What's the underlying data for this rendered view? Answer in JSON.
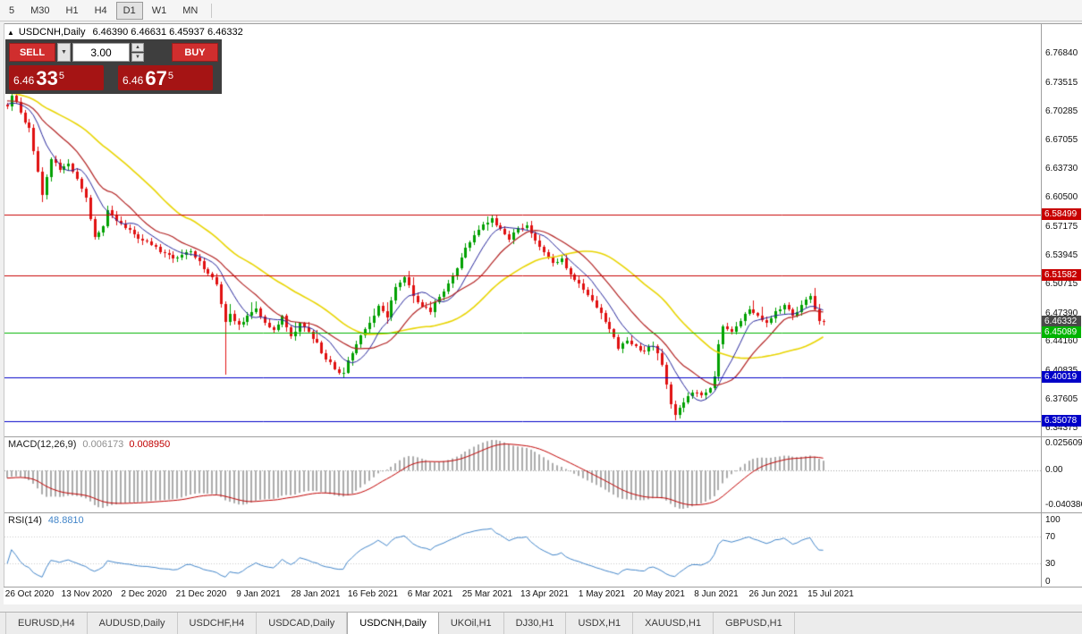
{
  "toolbar": {
    "timeframes": [
      {
        "label": "5",
        "active": false
      },
      {
        "label": "M30",
        "active": false
      },
      {
        "label": "H1",
        "active": false
      },
      {
        "label": "H4",
        "active": false
      },
      {
        "label": "D1",
        "active": true
      },
      {
        "label": "W1",
        "active": false
      },
      {
        "label": "MN",
        "active": false
      }
    ]
  },
  "chart": {
    "collapse_icon": "▲",
    "title_symbol": "USDCNH,Daily",
    "title_ohlc": "6.46390 6.46631 6.45937 6.46332"
  },
  "trade_panel": {
    "sell_label": "SELL",
    "buy_label": "BUY",
    "volume": "3.00",
    "bid": {
      "small": "6.46",
      "big": "33",
      "sup": "5"
    },
    "ask": {
      "small": "6.46",
      "big": "67",
      "sup": "5"
    }
  },
  "price_axis": {
    "ticks": [
      "6.76840",
      "6.73515",
      "6.70285",
      "6.67055",
      "6.63730",
      "6.60500",
      "6.57175",
      "6.53945",
      "6.50715",
      "6.47390",
      "6.44160",
      "6.40835",
      "6.37605",
      "6.34375"
    ]
  },
  "levels": [
    {
      "value": "6.58499",
      "color": "#C80000",
      "line": true
    },
    {
      "value": "6.51582",
      "color": "#C80000",
      "line": true
    },
    {
      "value": "6.46332",
      "color": "#4A4A4A",
      "line": false
    },
    {
      "value": "6.45089",
      "color": "#00B400",
      "line": true
    },
    {
      "value": "6.40019",
      "color": "#0000C8",
      "line": true
    },
    {
      "value": "6.35078",
      "color": "#0000C8",
      "line": true
    }
  ],
  "macd": {
    "label": "MACD(12,26,9)",
    "value_main": "0.006173",
    "value_signal": "0.008950",
    "axis": {
      "top": "0.025609",
      "zero": "0.00",
      "bottom": "-0.040386"
    }
  },
  "rsi": {
    "label": "RSI(14)",
    "value": "48.8810",
    "axis": [
      {
        "v": 100,
        "label": "100"
      },
      {
        "v": 70,
        "label": "70"
      },
      {
        "v": 30,
        "label": "30"
      },
      {
        "v": 0,
        "label": "0"
      }
    ],
    "levels": [
      70,
      30
    ]
  },
  "time_axis": {
    "labels": [
      "26 Oct 2020",
      "13 Nov 2020",
      "2 Dec 2020",
      "21 Dec 2020",
      "9 Jan 2021",
      "28 Jan 2021",
      "16 Feb 2021",
      "6 Mar 2021",
      "25 Mar 2021",
      "13 Apr 2021",
      "1 May 2021",
      "20 May 2021",
      "8 Jun 2021",
      "26 Jun 2021",
      "15 Jul 2021"
    ]
  },
  "tabs": [
    {
      "label": "EURUSD,H4",
      "active": false
    },
    {
      "label": "AUDUSD,Daily",
      "active": false
    },
    {
      "label": "USDCHF,H4",
      "active": false
    },
    {
      "label": "USDCAD,Daily",
      "active": false
    },
    {
      "label": "USDCNH,Daily",
      "active": true
    },
    {
      "label": "UKOil,H1",
      "active": false
    },
    {
      "label": "DJ30,H1",
      "active": false
    },
    {
      "label": "USDX,H1",
      "active": false
    },
    {
      "label": "XAUUSD,H1",
      "active": false
    },
    {
      "label": "GBPUSD,H1",
      "active": false
    }
  ],
  "chart_data": {
    "type": "candlestick",
    "symbol": "USDCNH",
    "timeframe": "Daily",
    "title": "USDCNH,Daily",
    "ohlc_display": {
      "open": "6.46390",
      "high": "6.46631",
      "low": "6.45937",
      "close": "6.46332"
    },
    "current_price": 6.46332,
    "ylim": [
      6.334,
      6.772
    ],
    "num_candles": 188,
    "pre_history_bars": 50,
    "horizontal_levels": [
      6.58499,
      6.51582,
      6.45089,
      6.40019,
      6.35078
    ],
    "anchors": [
      [
        -50,
        6.758
      ],
      [
        -35,
        6.742
      ],
      [
        -20,
        6.727
      ],
      [
        -8,
        6.714
      ],
      [
        0,
        6.708
      ],
      [
        1,
        6.72
      ],
      [
        3,
        6.701
      ],
      [
        5,
        6.683
      ],
      [
        7,
        6.634
      ],
      [
        8,
        6.607
      ],
      [
        9,
        6.628
      ],
      [
        10,
        6.648
      ],
      [
        12,
        6.636
      ],
      [
        14,
        6.643
      ],
      [
        16,
        6.625
      ],
      [
        18,
        6.604
      ],
      [
        20,
        6.56
      ],
      [
        22,
        6.572
      ],
      [
        23,
        6.59
      ],
      [
        25,
        6.578
      ],
      [
        27,
        6.57
      ],
      [
        30,
        6.558
      ],
      [
        33,
        6.551
      ],
      [
        36,
        6.541
      ],
      [
        39,
        6.536
      ],
      [
        42,
        6.543
      ],
      [
        44,
        6.532
      ],
      [
        46,
        6.518
      ],
      [
        48,
        6.506
      ],
      [
        50,
        6.463
      ],
      [
        51,
        6.472
      ],
      [
        53,
        6.46
      ],
      [
        55,
        6.47
      ],
      [
        57,
        6.479
      ],
      [
        59,
        6.462
      ],
      [
        61,
        6.454
      ],
      [
        63,
        6.47
      ],
      [
        65,
        6.447
      ],
      [
        67,
        6.462
      ],
      [
        69,
        6.452
      ],
      [
        71,
        6.44
      ],
      [
        73,
        6.421
      ],
      [
        75,
        6.41
      ],
      [
        77,
        6.406
      ],
      [
        79,
        6.428
      ],
      [
        81,
        6.448
      ],
      [
        83,
        6.462
      ],
      [
        85,
        6.482
      ],
      [
        87,
        6.468
      ],
      [
        89,
        6.503
      ],
      [
        91,
        6.514
      ],
      [
        93,
        6.493
      ],
      [
        95,
        6.481
      ],
      [
        97,
        6.474
      ],
      [
        99,
        6.492
      ],
      [
        101,
        6.507
      ],
      [
        103,
        6.524
      ],
      [
        105,
        6.547
      ],
      [
        107,
        6.562
      ],
      [
        109,
        6.574
      ],
      [
        111,
        6.581
      ],
      [
        113,
        6.569
      ],
      [
        115,
        6.557
      ],
      [
        117,
        6.57
      ],
      [
        119,
        6.573
      ],
      [
        121,
        6.556
      ],
      [
        123,
        6.542
      ],
      [
        125,
        6.53
      ],
      [
        127,
        6.535
      ],
      [
        129,
        6.517
      ],
      [
        131,
        6.507
      ],
      [
        133,
        6.494
      ],
      [
        135,
        6.48
      ],
      [
        136,
        6.473
      ],
      [
        138,
        6.455
      ],
      [
        140,
        6.433
      ],
      [
        142,
        6.442
      ],
      [
        144,
        6.436
      ],
      [
        146,
        6.43
      ],
      [
        148,
        6.436
      ],
      [
        150,
        6.415
      ],
      [
        151,
        6.392
      ],
      [
        152,
        6.37
      ],
      [
        153,
        6.358
      ],
      [
        155,
        6.372
      ],
      [
        157,
        6.383
      ],
      [
        159,
        6.38
      ],
      [
        161,
        6.388
      ],
      [
        162,
        6.402
      ],
      [
        163,
        6.438
      ],
      [
        164,
        6.458
      ],
      [
        166,
        6.452
      ],
      [
        168,
        6.464
      ],
      [
        170,
        6.478
      ],
      [
        172,
        6.47
      ],
      [
        174,
        6.462
      ],
      [
        176,
        6.476
      ],
      [
        178,
        6.483
      ],
      [
        180,
        6.47
      ],
      [
        182,
        6.483
      ],
      [
        184,
        6.493
      ],
      [
        185,
        6.478
      ],
      [
        186,
        6.4639
      ],
      [
        187,
        6.46332
      ]
    ],
    "wick_overrides": [
      {
        "index": 1,
        "high": 6.733
      },
      {
        "index": 8,
        "low": 6.599
      },
      {
        "index": 50,
        "low": 6.404
      },
      {
        "index": 77,
        "low": 6.3995
      },
      {
        "index": 111,
        "high": 6.5852
      },
      {
        "index": 153,
        "low": 6.3515
      }
    ],
    "last_candle": {
      "open": 6.4639,
      "high": 6.46631,
      "low": 6.45937,
      "close": 6.46332
    },
    "colors": {
      "up": "#00A000",
      "down": "#E01010",
      "macd_histogram": "#ABABAB",
      "macd_signal": "#C00000",
      "rsi_line": "#4285C9",
      "level_dotted": "#C9C9C9"
    },
    "moving_averages": [
      {
        "period": 34,
        "color": "#E8D400",
        "width": 1.6
      },
      {
        "period": 8,
        "color": "#26269B",
        "width": 1
      },
      {
        "period": 16,
        "color": "#B22222",
        "width": 1.2
      }
    ],
    "indicators": [
      {
        "name": "MACD",
        "params": [
          12,
          26,
          9
        ],
        "values": [
          0.006173,
          0.00895
        ]
      },
      {
        "name": "RSI",
        "params": [
          14
        ],
        "value": 48.881
      }
    ]
  }
}
